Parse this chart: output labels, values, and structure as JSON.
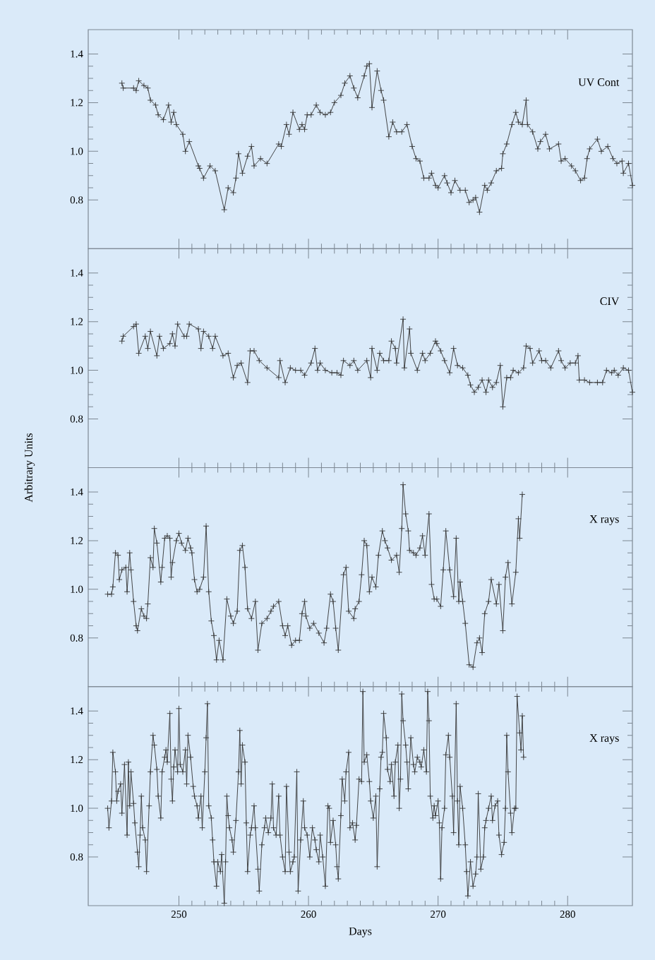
{
  "chart_data": [
    {
      "type": "line",
      "title": "UV Cont",
      "color": "#333333",
      "marker": "cross",
      "line_style": "solid",
      "xlim": [
        243,
        285
      ],
      "ylim": [
        0.6,
        1.5
      ],
      "xticks": [
        250,
        260,
        270,
        280
      ],
      "yticks": [
        {
          "value": 0.8,
          "label": "0.8"
        },
        {
          "value": 1.0,
          "label": "1.0"
        },
        {
          "value": 1.2,
          "label": "1.2"
        },
        {
          "value": 1.4,
          "label": "1.4"
        }
      ],
      "tick_labels": "y",
      "x": [
        245.6,
        245.7,
        246.5,
        246.7,
        246.9,
        247.3,
        247.6,
        247.8,
        248.2,
        248.4,
        248.8,
        249.2,
        249.4,
        249.6,
        249.8,
        250.3,
        250.5,
        250.8,
        251.5,
        251.6,
        251.9,
        252.4,
        252.8,
        253.5,
        253.8,
        254.2,
        254.4,
        254.6,
        254.9,
        255.3,
        255.6,
        255.8,
        256.3,
        256.8,
        257.7,
        257.9,
        258.3,
        258.5,
        258.8,
        259.3,
        259.5,
        259.7,
        259.9,
        260.2,
        260.6,
        260.9,
        261.3,
        261.7,
        262.0,
        262.5,
        262.8,
        263.2,
        263.5,
        263.8,
        264.3,
        264.5,
        264.7,
        264.9,
        265.3,
        265.6,
        265.8,
        266.2,
        266.5,
        266.8,
        267.2,
        267.6,
        268.0,
        268.3,
        268.6,
        268.9,
        269.3,
        269.5,
        269.8,
        270.0,
        270.5,
        270.7,
        271.0,
        271.3,
        271.7,
        272.1,
        272.4,
        272.7,
        272.9,
        273.2,
        273.6,
        273.8,
        274.1,
        274.5,
        274.9,
        275.0,
        275.3,
        275.7,
        276.0,
        276.2,
        276.5,
        276.8,
        276.9,
        277.3,
        277.7,
        277.9,
        278.3,
        278.6,
        279.3,
        279.5,
        279.8,
        280.3,
        280.6,
        281.0,
        281.3,
        281.5,
        281.7,
        282.3,
        282.6,
        283.1,
        283.5,
        283.8,
        284.2,
        284.3,
        284.7,
        285.0
      ],
      "values": [
        1.28,
        1.26,
        1.26,
        1.25,
        1.29,
        1.27,
        1.26,
        1.21,
        1.19,
        1.15,
        1.13,
        1.19,
        1.12,
        1.16,
        1.11,
        1.07,
        1.0,
        1.04,
        0.94,
        0.93,
        0.89,
        0.94,
        0.92,
        0.76,
        0.85,
        0.83,
        0.89,
        0.99,
        0.91,
        0.98,
        1.02,
        0.94,
        0.97,
        0.95,
        1.03,
        1.02,
        1.11,
        1.07,
        1.16,
        1.09,
        1.11,
        1.09,
        1.15,
        1.15,
        1.19,
        1.16,
        1.15,
        1.16,
        1.2,
        1.23,
        1.28,
        1.31,
        1.26,
        1.22,
        1.31,
        1.35,
        1.36,
        1.18,
        1.33,
        1.25,
        1.21,
        1.06,
        1.12,
        1.08,
        1.08,
        1.11,
        1.02,
        0.97,
        0.96,
        0.89,
        0.89,
        0.91,
        0.86,
        0.85,
        0.9,
        0.87,
        0.83,
        0.88,
        0.84,
        0.84,
        0.79,
        0.8,
        0.81,
        0.75,
        0.86,
        0.84,
        0.87,
        0.92,
        0.93,
        0.99,
        1.03,
        1.11,
        1.16,
        1.12,
        1.11,
        1.21,
        1.11,
        1.08,
        1.01,
        1.04,
        1.07,
        1.01,
        1.03,
        0.96,
        0.97,
        0.94,
        0.92,
        0.88,
        0.89,
        0.97,
        1.01,
        1.05,
        1.0,
        1.02,
        0.97,
        0.95,
        0.96,
        0.91,
        0.95,
        0.86
      ]
    },
    {
      "type": "line",
      "title": "CIV",
      "ylabel": "Arbitrary Units",
      "color": "#333333",
      "marker": "cross",
      "line_style": "solid",
      "xlim": [
        243,
        285
      ],
      "ylim": [
        0.6,
        1.5
      ],
      "xticks": [
        250,
        260,
        270,
        280
      ],
      "yticks": [
        {
          "value": 0.8,
          "label": "0.8"
        },
        {
          "value": 1.0,
          "label": "1.0"
        },
        {
          "value": 1.2,
          "label": "1.2"
        },
        {
          "value": 1.4,
          "label": "1.4"
        }
      ],
      "tick_labels": "y",
      "x": [
        245.6,
        245.7,
        246.5,
        246.7,
        246.9,
        247.4,
        247.6,
        247.8,
        248.3,
        248.5,
        248.8,
        249.3,
        249.5,
        249.7,
        249.9,
        250.4,
        250.6,
        250.8,
        251.5,
        251.7,
        251.9,
        252.3,
        252.6,
        252.8,
        253.4,
        253.8,
        254.2,
        254.5,
        254.8,
        255.3,
        255.5,
        255.8,
        256.2,
        256.8,
        257.7,
        257.8,
        258.2,
        258.6,
        259.0,
        259.4,
        259.7,
        260.2,
        260.5,
        260.7,
        260.9,
        261.3,
        261.8,
        262.2,
        262.5,
        262.7,
        263.2,
        263.5,
        263.8,
        264.5,
        264.8,
        264.9,
        265.3,
        265.5,
        265.8,
        266.2,
        266.4,
        266.7,
        266.8,
        267.3,
        267.4,
        267.8,
        267.9,
        268.4,
        268.8,
        269.0,
        269.4,
        269.8,
        269.9,
        270.2,
        270.5,
        270.9,
        271.2,
        271.5,
        271.9,
        272.3,
        272.5,
        272.8,
        273.1,
        273.4,
        273.7,
        273.9,
        274.2,
        274.5,
        274.8,
        275.0,
        275.3,
        275.6,
        275.8,
        276.2,
        276.6,
        276.8,
        277.1,
        277.3,
        277.8,
        278.0,
        278.3,
        278.7,
        279.3,
        279.5,
        279.8,
        280.2,
        280.6,
        280.8,
        280.9,
        281.3,
        281.7,
        282.3,
        282.7,
        283.0,
        283.4,
        283.6,
        283.9,
        284.3,
        284.7,
        285.0
      ],
      "values": [
        1.12,
        1.14,
        1.18,
        1.19,
        1.07,
        1.14,
        1.09,
        1.16,
        1.06,
        1.14,
        1.09,
        1.11,
        1.15,
        1.1,
        1.19,
        1.14,
        1.14,
        1.19,
        1.17,
        1.09,
        1.16,
        1.14,
        1.09,
        1.14,
        1.06,
        1.07,
        0.97,
        1.02,
        1.03,
        0.95,
        1.08,
        1.08,
        1.04,
        1.01,
        0.97,
        1.04,
        0.95,
        1.01,
        1.0,
        1.0,
        0.98,
        1.03,
        1.09,
        1.0,
        1.03,
        1.0,
        0.99,
        0.99,
        0.98,
        1.04,
        1.02,
        1.04,
        1.0,
        1.04,
        0.97,
        1.09,
        1.0,
        1.07,
        1.04,
        1.04,
        1.12,
        1.09,
        1.03,
        1.21,
        1.01,
        1.17,
        1.07,
        1.0,
        1.07,
        1.04,
        1.07,
        1.12,
        1.11,
        1.08,
        1.04,
        0.99,
        1.09,
        1.02,
        1.01,
        0.98,
        0.94,
        0.91,
        0.93,
        0.96,
        0.91,
        0.96,
        0.93,
        0.95,
        1.02,
        0.85,
        0.97,
        0.97,
        1.0,
        0.99,
        1.01,
        1.1,
        1.09,
        1.03,
        1.08,
        1.04,
        1.04,
        1.01,
        1.08,
        1.04,
        1.01,
        1.03,
        1.03,
        1.06,
        0.96,
        0.96,
        0.95,
        0.95,
        0.95,
        1.0,
        0.99,
        1.0,
        0.98,
        1.01,
        1.0,
        0.91
      ]
    },
    {
      "type": "line",
      "title": "X rays",
      "color": "#333333",
      "marker": "cross",
      "line_style": "solid",
      "xlim": [
        243,
        285
      ],
      "ylim": [
        0.6,
        1.5
      ],
      "xticks": [
        250,
        260,
        270,
        280
      ],
      "yticks": [
        {
          "value": 0.8,
          "label": "0.8"
        },
        {
          "value": 1.0,
          "label": "1.0"
        },
        {
          "value": 1.2,
          "label": "1.2"
        },
        {
          "value": 1.4,
          "label": "1.4"
        }
      ],
      "tick_labels": "y",
      "x": [
        244.5,
        244.8,
        244.9,
        245.1,
        245.3,
        245.4,
        245.6,
        245.9,
        246.0,
        246.2,
        246.3,
        246.5,
        246.7,
        246.8,
        247.1,
        247.3,
        247.5,
        247.6,
        247.8,
        248.0,
        248.1,
        248.3,
        248.6,
        248.7,
        248.9,
        249.1,
        249.3,
        249.4,
        249.5,
        249.8,
        250.0,
        250.2,
        250.5,
        250.7,
        250.9,
        251.0,
        251.2,
        251.4,
        251.6,
        251.9,
        252.1,
        252.3,
        252.5,
        252.7,
        252.9,
        253.1,
        253.4,
        253.7,
        254.0,
        254.2,
        254.5,
        254.7,
        254.9,
        255.1,
        255.3,
        255.6,
        255.9,
        256.1,
        256.4,
        256.8,
        257.1,
        257.3,
        257.7,
        258.0,
        258.2,
        258.4,
        258.7,
        259.0,
        259.3,
        259.5,
        259.7,
        259.8,
        260.1,
        260.4,
        260.8,
        261.2,
        261.4,
        261.7,
        261.9,
        262.1,
        262.3,
        262.7,
        262.9,
        263.1,
        263.5,
        263.6,
        263.9,
        264.1,
        264.3,
        264.5,
        264.7,
        264.9,
        265.2,
        265.4,
        265.7,
        265.9,
        266.1,
        266.4,
        266.8,
        267.0,
        267.2,
        267.3,
        267.5,
        267.7,
        267.8,
        268.1,
        268.3,
        268.6,
        268.8,
        269.0,
        269.3,
        269.5,
        269.7,
        269.9,
        270.2,
        270.4,
        270.6,
        270.9,
        271.2,
        271.4,
        271.6,
        271.7,
        271.9,
        272.1,
        272.4,
        272.7,
        273.0,
        273.2,
        273.4,
        273.6,
        273.9,
        274.1,
        274.5,
        274.7,
        275.0,
        275.2,
        275.4,
        275.7,
        276.0,
        276.2,
        276.3,
        276.5
      ],
      "values": [
        0.98,
        0.98,
        1.01,
        1.15,
        1.14,
        1.04,
        1.08,
        1.09,
        0.99,
        1.15,
        1.08,
        0.95,
        0.85,
        0.83,
        0.92,
        0.89,
        0.88,
        0.94,
        1.13,
        1.09,
        1.25,
        1.19,
        1.03,
        1.09,
        1.21,
        1.22,
        1.21,
        1.05,
        1.11,
        1.2,
        1.23,
        1.19,
        1.16,
        1.21,
        1.17,
        1.15,
        1.04,
        0.99,
        1.0,
        1.05,
        1.26,
        0.99,
        0.87,
        0.81,
        0.71,
        0.79,
        0.71,
        0.96,
        0.89,
        0.86,
        0.91,
        1.16,
        1.18,
        1.09,
        0.92,
        0.88,
        0.95,
        0.75,
        0.86,
        0.88,
        0.91,
        0.93,
        0.95,
        0.85,
        0.81,
        0.85,
        0.77,
        0.79,
        0.79,
        0.9,
        0.95,
        0.89,
        0.84,
        0.86,
        0.82,
        0.78,
        0.84,
        0.98,
        0.95,
        0.84,
        0.75,
        1.06,
        1.09,
        0.91,
        0.88,
        0.92,
        0.95,
        1.06,
        1.2,
        1.18,
        0.99,
        1.05,
        1.01,
        1.14,
        1.24,
        1.2,
        1.17,
        1.12,
        1.14,
        1.07,
        1.25,
        1.43,
        1.31,
        1.24,
        1.16,
        1.15,
        1.14,
        1.17,
        1.22,
        1.14,
        1.31,
        1.02,
        0.96,
        0.96,
        0.93,
        1.08,
        1.24,
        1.08,
        0.97,
        1.21,
        0.95,
        1.03,
        0.95,
        0.86,
        0.69,
        0.68,
        0.78,
        0.8,
        0.74,
        0.9,
        0.95,
        1.04,
        0.94,
        1.02,
        0.83,
        1.05,
        1.11,
        0.94,
        1.07,
        1.29,
        1.21,
        1.39
      ]
    },
    {
      "type": "line",
      "title": "X rays",
      "xlabel": "Days",
      "color": "#333333",
      "marker": "cross",
      "line_style": "solid",
      "xlim": [
        243,
        285
      ],
      "ylim": [
        0.6,
        1.5
      ],
      "xticks": [
        250,
        260,
        270,
        280
      ],
      "yticks": [
        {
          "value": 0.8,
          "label": "0.8"
        },
        {
          "value": 1.0,
          "label": "1.0"
        },
        {
          "value": 1.2,
          "label": "1.2"
        },
        {
          "value": 1.4,
          "label": "1.4"
        }
      ],
      "x": [
        244.5,
        244.6,
        244.8,
        244.9,
        245.1,
        245.2,
        245.3,
        245.5,
        245.6,
        245.8,
        246.0,
        246.1,
        246.2,
        246.3,
        246.5,
        246.6,
        246.8,
        246.9,
        247.0,
        247.1,
        247.2,
        247.4,
        247.5,
        247.7,
        247.8,
        248.0,
        248.1,
        248.3,
        248.4,
        248.6,
        248.7,
        248.9,
        249.0,
        249.1,
        249.3,
        249.4,
        249.5,
        249.6,
        249.7,
        249.9,
        250.0,
        250.1,
        250.3,
        250.5,
        250.6,
        250.7,
        250.9,
        251.1,
        251.2,
        251.4,
        251.5,
        251.7,
        251.8,
        252.0,
        252.1,
        252.2,
        252.3,
        252.5,
        252.6,
        252.7,
        252.9,
        253.0,
        253.2,
        253.3,
        253.5,
        253.6,
        253.7,
        253.8,
        253.9,
        254.1,
        254.2,
        254.4,
        254.6,
        254.7,
        254.8,
        254.9,
        255.1,
        255.2,
        255.3,
        255.5,
        255.6,
        255.8,
        255.9,
        256.1,
        256.2,
        256.4,
        256.6,
        256.7,
        256.9,
        257.1,
        257.2,
        257.3,
        257.5,
        257.7,
        257.8,
        258.0,
        258.2,
        258.3,
        258.5,
        258.6,
        258.8,
        258.9,
        259.1,
        259.2,
        259.4,
        259.6,
        259.7,
        259.9,
        260.1,
        260.3,
        260.5,
        260.6,
        260.8,
        260.9,
        261.1,
        261.3,
        261.5,
        261.6,
        261.7,
        261.9,
        262.1,
        262.2,
        262.3,
        262.5,
        262.6,
        262.8,
        262.9,
        263.1,
        263.2,
        263.4,
        263.6,
        263.7,
        263.9,
        264.1,
        264.2,
        264.3,
        264.5,
        264.7,
        264.8,
        265.0,
        265.2,
        265.3,
        265.5,
        265.6,
        265.7,
        265.8,
        266.0,
        266.1,
        266.3,
        266.4,
        266.6,
        266.7,
        266.9,
        267.0,
        267.1,
        267.2,
        267.3,
        267.5,
        267.6,
        267.7,
        267.9,
        268.1,
        268.2,
        268.4,
        268.6,
        268.7,
        268.9,
        269.1,
        269.2,
        269.3,
        269.4,
        269.6,
        269.7,
        269.8,
        270.0,
        270.1,
        270.2,
        270.3,
        270.5,
        270.6,
        270.8,
        270.9,
        271.1,
        271.2,
        271.4,
        271.5,
        271.6,
        271.7,
        271.9,
        272.1,
        272.2,
        272.3,
        272.5,
        272.7,
        272.9,
        273.0,
        273.1,
        273.3,
        273.5,
        273.6,
        273.7,
        273.9,
        274.1,
        274.2,
        274.4,
        274.6,
        274.7,
        274.9,
        275.1,
        275.2,
        275.3,
        275.4,
        275.6,
        275.7,
        275.9,
        276.0,
        276.1,
        276.3,
        276.4,
        276.5,
        276.6
      ],
      "values": [
        1.0,
        0.92,
        1.03,
        1.23,
        1.15,
        1.03,
        1.07,
        1.1,
        0.98,
        1.18,
        0.89,
        1.19,
        1.01,
        1.15,
        1.02,
        0.94,
        0.82,
        0.76,
        0.89,
        1.05,
        0.92,
        0.87,
        0.74,
        1.01,
        1.15,
        1.3,
        1.26,
        1.16,
        1.05,
        0.96,
        1.15,
        1.21,
        1.24,
        1.19,
        1.39,
        1.12,
        1.03,
        1.17,
        1.24,
        1.15,
        1.41,
        1.18,
        1.15,
        1.24,
        1.1,
        1.3,
        1.21,
        1.09,
        1.05,
        1.01,
        0.96,
        1.05,
        0.92,
        1.15,
        1.29,
        1.43,
        1.01,
        0.96,
        0.87,
        0.78,
        0.68,
        0.78,
        0.74,
        0.81,
        0.61,
        0.78,
        1.05,
        0.97,
        0.92,
        0.87,
        0.82,
        0.95,
        1.15,
        1.32,
        1.1,
        1.26,
        1.19,
        0.94,
        0.74,
        0.89,
        0.92,
        1.01,
        0.92,
        0.75,
        0.66,
        0.85,
        0.92,
        0.96,
        0.9,
        0.96,
        1.1,
        0.92,
        0.89,
        1.05,
        0.89,
        0.8,
        0.74,
        1.09,
        0.82,
        0.74,
        0.78,
        0.8,
        1.15,
        0.66,
        0.87,
        1.03,
        0.92,
        0.89,
        0.8,
        0.92,
        0.87,
        0.83,
        0.78,
        0.89,
        0.8,
        0.68,
        1.01,
        1.0,
        0.86,
        0.95,
        0.85,
        0.76,
        0.71,
        0.97,
        1.12,
        1.03,
        1.15,
        1.23,
        0.92,
        0.94,
        0.87,
        0.93,
        1.12,
        1.11,
        1.48,
        1.19,
        1.22,
        1.11,
        1.03,
        0.96,
        1.05,
        0.76,
        1.08,
        1.21,
        1.23,
        1.39,
        1.29,
        1.16,
        1.11,
        1.18,
        1.05,
        1.19,
        1.26,
        1.0,
        1.12,
        1.47,
        1.36,
        1.26,
        1.19,
        1.08,
        1.29,
        1.18,
        1.15,
        1.21,
        1.19,
        1.17,
        1.24,
        1.15,
        1.48,
        1.36,
        1.05,
        0.96,
        1.01,
        0.97,
        1.03,
        0.94,
        0.71,
        0.92,
        1.0,
        1.22,
        1.3,
        1.21,
        1.05,
        0.9,
        1.43,
        1.03,
        0.85,
        1.09,
        1.0,
        0.85,
        0.74,
        0.64,
        0.78,
        0.68,
        0.73,
        0.8,
        1.06,
        0.75,
        0.8,
        0.92,
        0.95,
        1.0,
        1.05,
        0.95,
        1.01,
        1.03,
        0.89,
        0.81,
        0.86,
        1.0,
        1.3,
        1.15,
        0.98,
        0.9,
        1.0,
        1.0,
        1.46,
        1.31,
        1.24,
        1.38,
        1.21
      ]
    }
  ]
}
